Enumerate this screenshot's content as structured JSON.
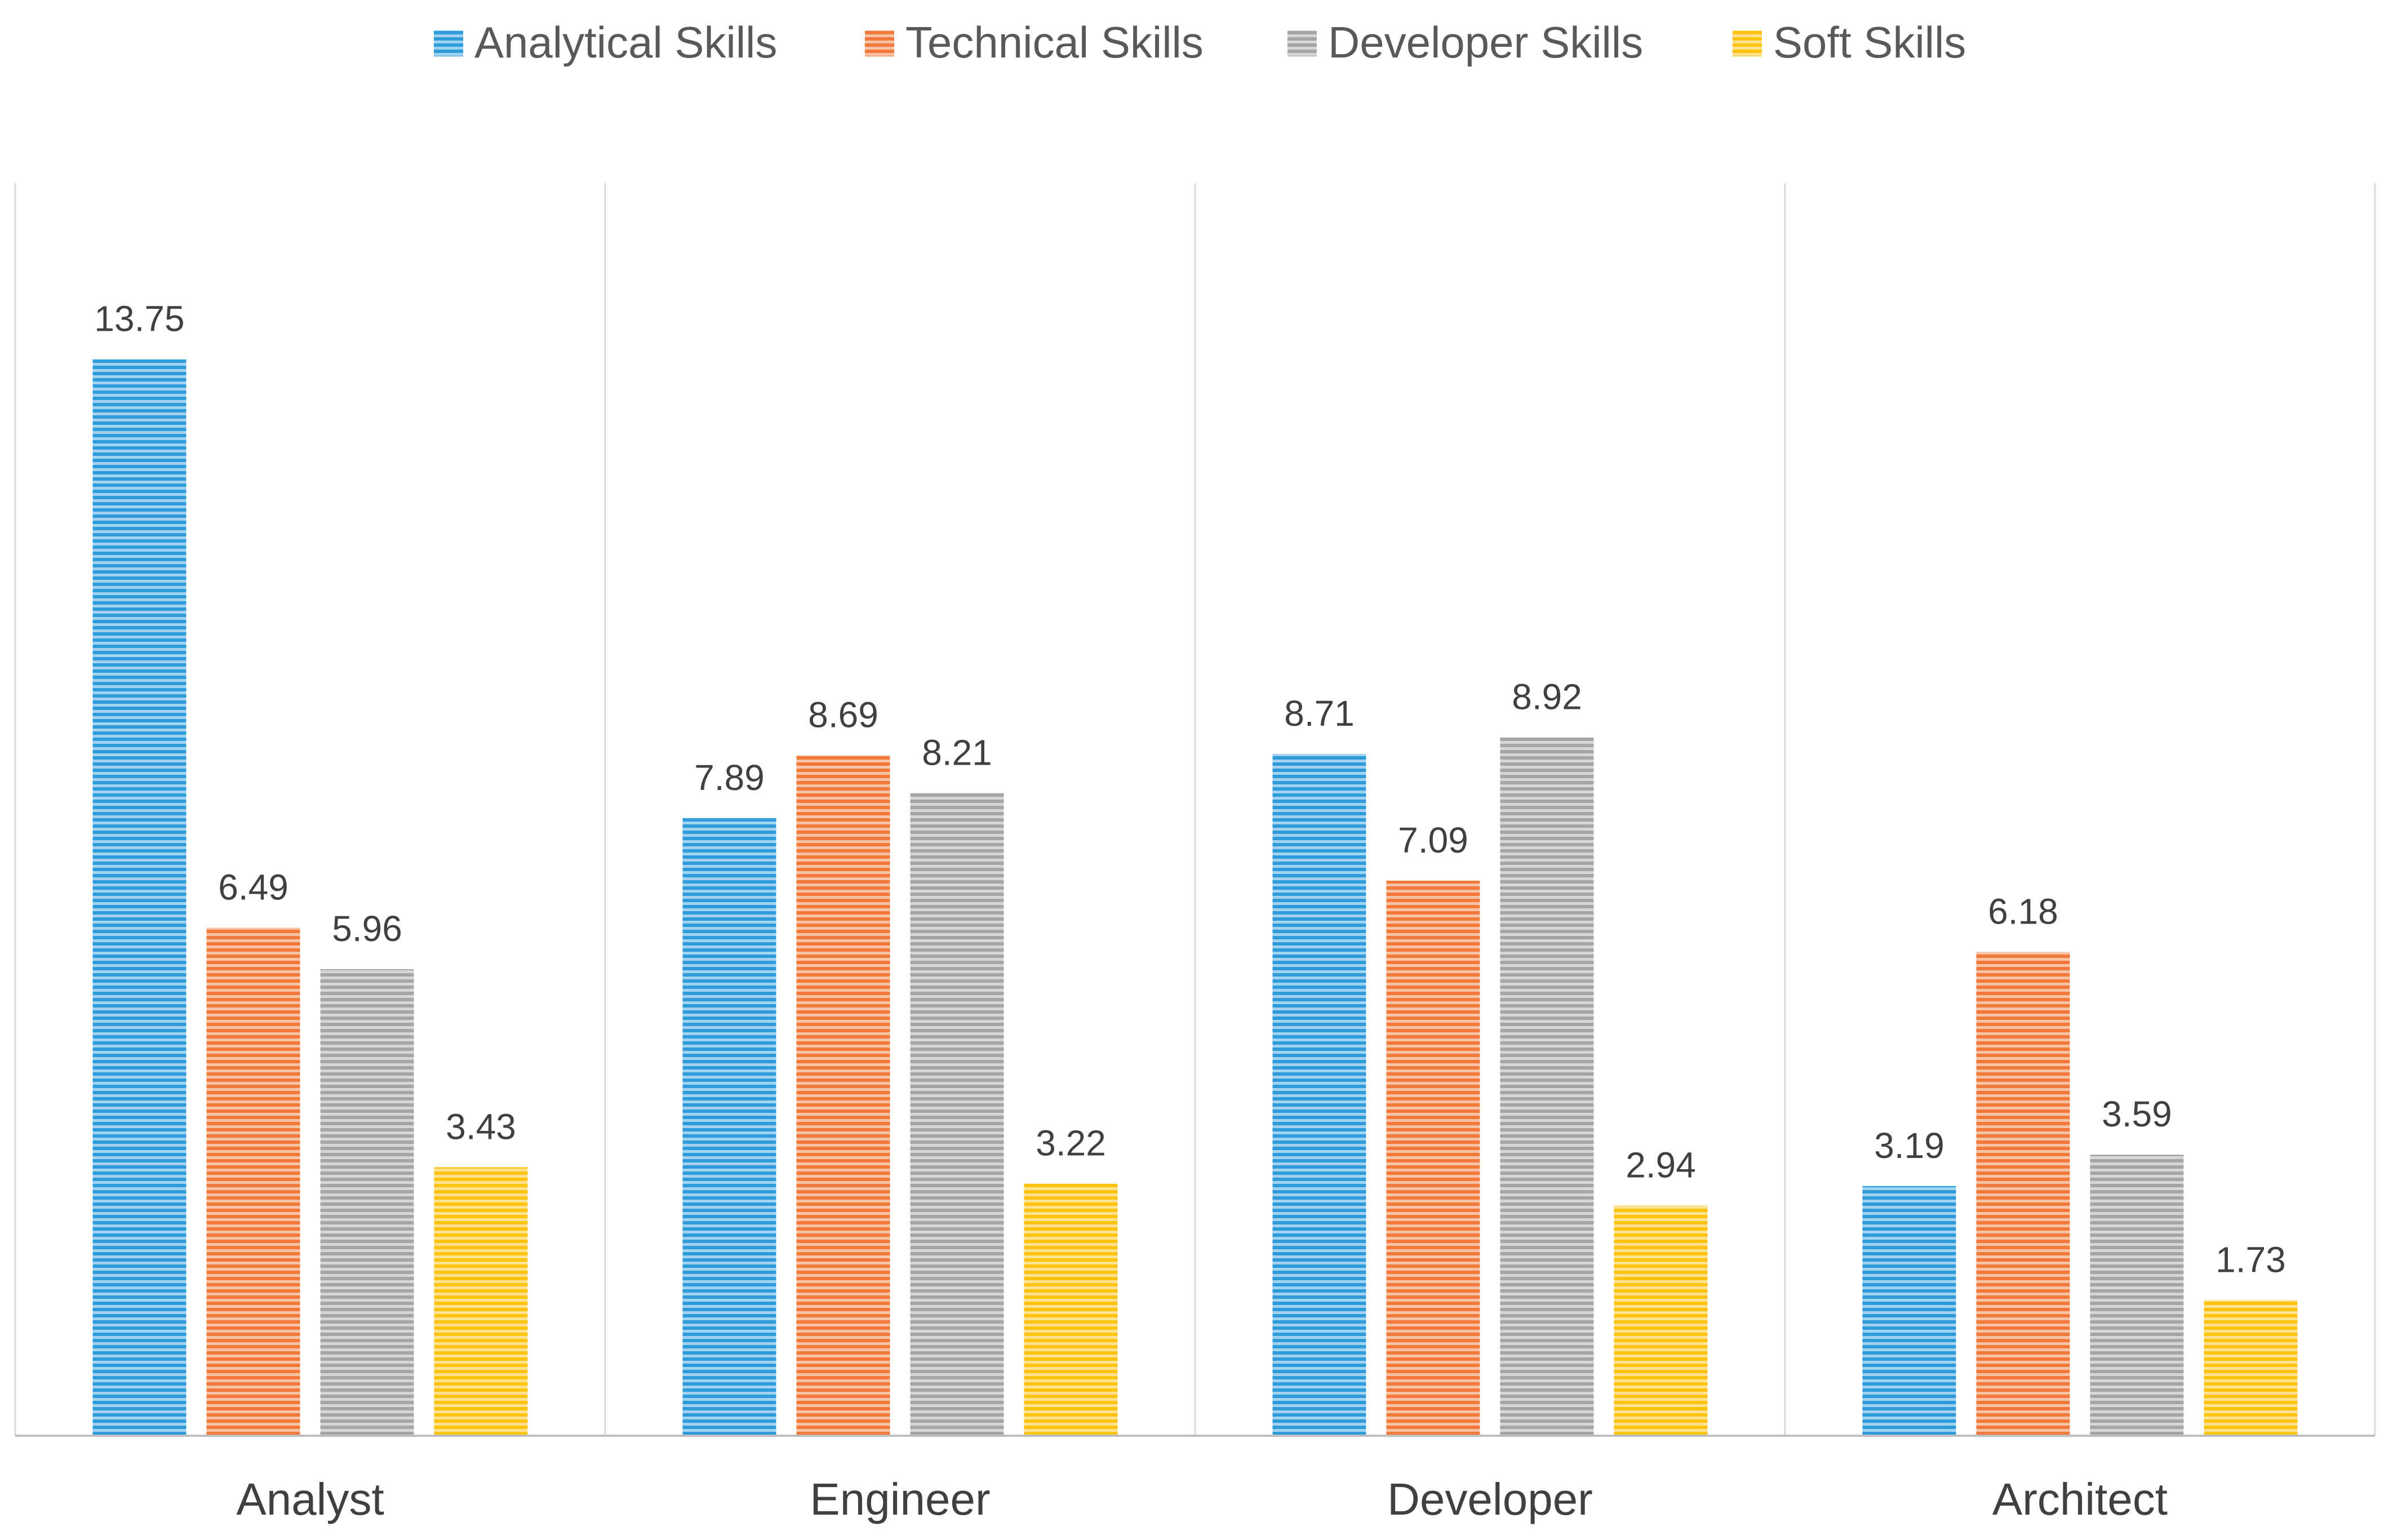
{
  "chart_data": {
    "type": "bar",
    "title": "",
    "xlabel": "",
    "ylabel": "",
    "categories": [
      "Analyst",
      "Engineer",
      "Developer",
      "Architect"
    ],
    "series": [
      {
        "name": "Analytical Skills",
        "color": "#2E9BDB",
        "values": [
          13.75,
          7.89,
          8.71,
          3.19
        ]
      },
      {
        "name": "Technical Skills",
        "color": "#F2793A",
        "values": [
          6.49,
          8.69,
          7.09,
          6.18
        ]
      },
      {
        "name": "Developer Skills",
        "color": "#A6A6A6",
        "values": [
          5.96,
          8.21,
          8.92,
          3.59
        ]
      },
      {
        "name": "Soft Skills",
        "color": "#FFC20E",
        "values": [
          3.43,
          3.22,
          2.94,
          1.73
        ]
      }
    ],
    "ylim": [
      0,
      16
    ],
    "data_labels": true,
    "legend_position": "top",
    "grid": false,
    "category_separators": true
  }
}
